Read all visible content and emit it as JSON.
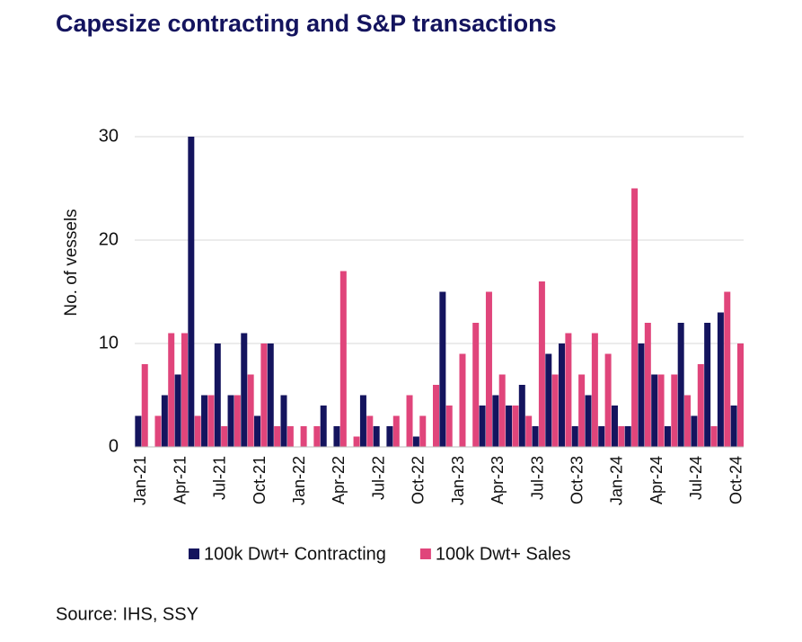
{
  "chart_data": {
    "type": "bar",
    "title": "Capesize contracting and S&P transactions",
    "y_label": "No. of vessels",
    "source": "Source: IHS, SSY",
    "categories": [
      "Jan-21",
      null,
      null,
      "Apr-21",
      null,
      null,
      "Jul-21",
      null,
      null,
      "Oct-21",
      null,
      null,
      "Jan-22",
      null,
      null,
      "Apr-22",
      null,
      null,
      "Jul-22",
      null,
      null,
      "Oct-22",
      null,
      null,
      "Jan-23",
      null,
      null,
      "Apr-23",
      null,
      null,
      "Jul-23",
      null,
      null,
      "Oct-23",
      null,
      null,
      "Jan-24",
      null,
      null,
      "Apr-24",
      null,
      null,
      "Jul-24",
      null,
      null,
      "Oct-24"
    ],
    "series": [
      {
        "name": "100k Dwt+ Contracting",
        "color": "#14145e",
        "values": [
          3,
          0,
          5,
          7,
          30,
          5,
          10,
          5,
          11,
          3,
          10,
          5,
          0,
          0,
          4,
          2,
          0,
          5,
          2,
          2,
          0,
          1,
          0,
          15,
          0,
          0,
          4,
          5,
          4,
          6,
          2,
          9,
          10,
          2,
          5,
          2,
          4,
          2,
          10,
          7,
          2,
          12,
          3,
          12,
          13,
          4
        ]
      },
      {
        "name": "100k Dwt+ Sales",
        "color": "#e0457b",
        "values": [
          8,
          3,
          11,
          11,
          3,
          5,
          2,
          5,
          7,
          10,
          2,
          2,
          2,
          2,
          0,
          17,
          1,
          3,
          0,
          3,
          5,
          3,
          6,
          4,
          9,
          12,
          15,
          7,
          4,
          3,
          16,
          7,
          11,
          7,
          11,
          9,
          2,
          25,
          12,
          7,
          7,
          5,
          8,
          2,
          15,
          10
        ]
      }
    ],
    "ylim": [
      0,
      30
    ],
    "yticks": [
      0,
      10,
      20,
      30
    ],
    "grid": true,
    "legend": "bottom"
  }
}
